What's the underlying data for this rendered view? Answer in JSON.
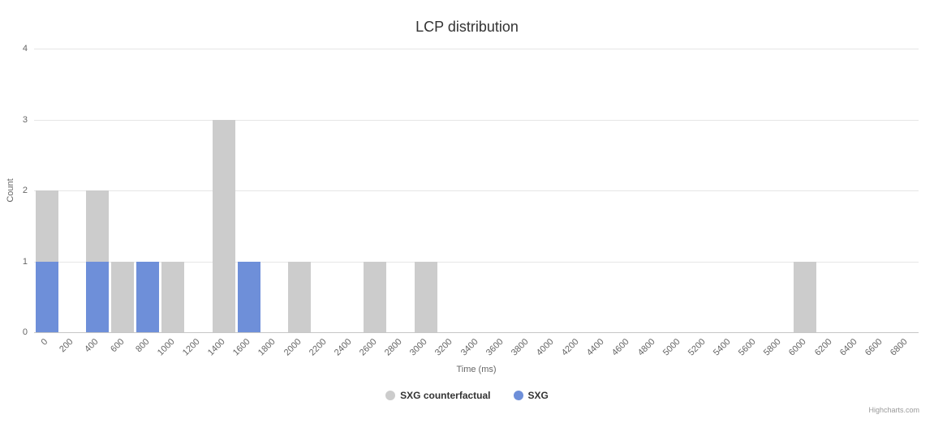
{
  "credits": "Highcharts.com",
  "chart_data": {
    "type": "bar",
    "title": "LCP distribution",
    "xlabel": "Time (ms)",
    "ylabel": "Count",
    "ylim": [
      0,
      4
    ],
    "yticks": [
      0,
      1,
      2,
      3,
      4
    ],
    "grid": true,
    "legend_position": "bottom",
    "categories": [
      "0",
      "200",
      "400",
      "600",
      "800",
      "1000",
      "1200",
      "1400",
      "1600",
      "1800",
      "2000",
      "2200",
      "2400",
      "2600",
      "2800",
      "3000",
      "3200",
      "3400",
      "3600",
      "3800",
      "4000",
      "4200",
      "4400",
      "4600",
      "4800",
      "5000",
      "5200",
      "5400",
      "5600",
      "5800",
      "6000",
      "6200",
      "6400",
      "6600",
      "6800"
    ],
    "series": [
      {
        "name": "SXG counterfactual",
        "color": "#cccccc",
        "values": [
          2,
          0,
          2,
          1,
          0,
          1,
          0,
          3,
          0,
          0,
          1,
          0,
          0,
          1,
          0,
          1,
          0,
          0,
          0,
          0,
          0,
          0,
          0,
          0,
          0,
          0,
          0,
          0,
          0,
          0,
          1,
          0,
          0,
          0,
          0
        ]
      },
      {
        "name": "SXG",
        "color": "#6e8fd9",
        "values": [
          1,
          0,
          1,
          0,
          1,
          0,
          0,
          0,
          1,
          0,
          0,
          0,
          0,
          0,
          0,
          0,
          0,
          0,
          0,
          0,
          0,
          0,
          0,
          0,
          0,
          0,
          0,
          0,
          0,
          0,
          0,
          0,
          0,
          0,
          0
        ]
      }
    ]
  }
}
